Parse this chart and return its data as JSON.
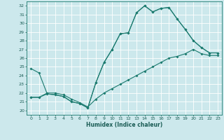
{
  "title": "",
  "xlabel": "Humidex (Indice chaleur)",
  "bg_color": "#cce8ec",
  "grid_color": "#ffffff",
  "line_color": "#1a7a6e",
  "xlim": [
    -0.5,
    23.5
  ],
  "ylim": [
    19.5,
    32.5
  ],
  "xticks": [
    0,
    1,
    2,
    3,
    4,
    5,
    6,
    7,
    8,
    9,
    10,
    11,
    12,
    13,
    14,
    15,
    16,
    17,
    18,
    19,
    20,
    21,
    22,
    23
  ],
  "yticks": [
    20,
    21,
    22,
    23,
    24,
    25,
    26,
    27,
    28,
    29,
    30,
    31,
    32
  ],
  "curve1_x": [
    0,
    1,
    2,
    3,
    4,
    5,
    6,
    7,
    8,
    9,
    10,
    11,
    12,
    13,
    14,
    15,
    16,
    17,
    18,
    19,
    20,
    21,
    22,
    23
  ],
  "curve1_y": [
    24.8,
    24.3,
    21.9,
    21.8,
    21.6,
    21.0,
    20.8,
    20.3,
    23.2,
    25.5,
    27.0,
    28.8,
    28.9,
    31.2,
    32.0,
    31.3,
    31.7,
    31.8,
    30.5,
    29.3,
    28.0,
    27.2,
    26.6,
    26.6
  ],
  "curve2_x": [
    0,
    1,
    2,
    3,
    4,
    5,
    6,
    7,
    8,
    9,
    10,
    11,
    12,
    13,
    14,
    15,
    16,
    17,
    18,
    19,
    20,
    21,
    22,
    23
  ],
  "curve2_y": [
    21.5,
    21.5,
    21.9,
    21.8,
    21.6,
    21.0,
    20.8,
    20.3,
    23.2,
    25.5,
    27.0,
    28.8,
    28.9,
    31.2,
    32.0,
    31.3,
    31.7,
    31.8,
    30.5,
    29.3,
    28.0,
    27.2,
    26.6,
    26.6
  ],
  "curve3_x": [
    0,
    1,
    2,
    3,
    4,
    5,
    6,
    7,
    8,
    9,
    10,
    11,
    12,
    13,
    14,
    15,
    16,
    17,
    18,
    19,
    20,
    21,
    22,
    23
  ],
  "curve3_y": [
    21.5,
    21.5,
    22.0,
    22.0,
    21.8,
    21.3,
    20.9,
    20.4,
    21.3,
    22.0,
    22.5,
    23.0,
    23.5,
    24.0,
    24.5,
    25.0,
    25.5,
    26.0,
    26.2,
    26.5,
    27.0,
    26.5,
    26.3,
    26.3
  ]
}
